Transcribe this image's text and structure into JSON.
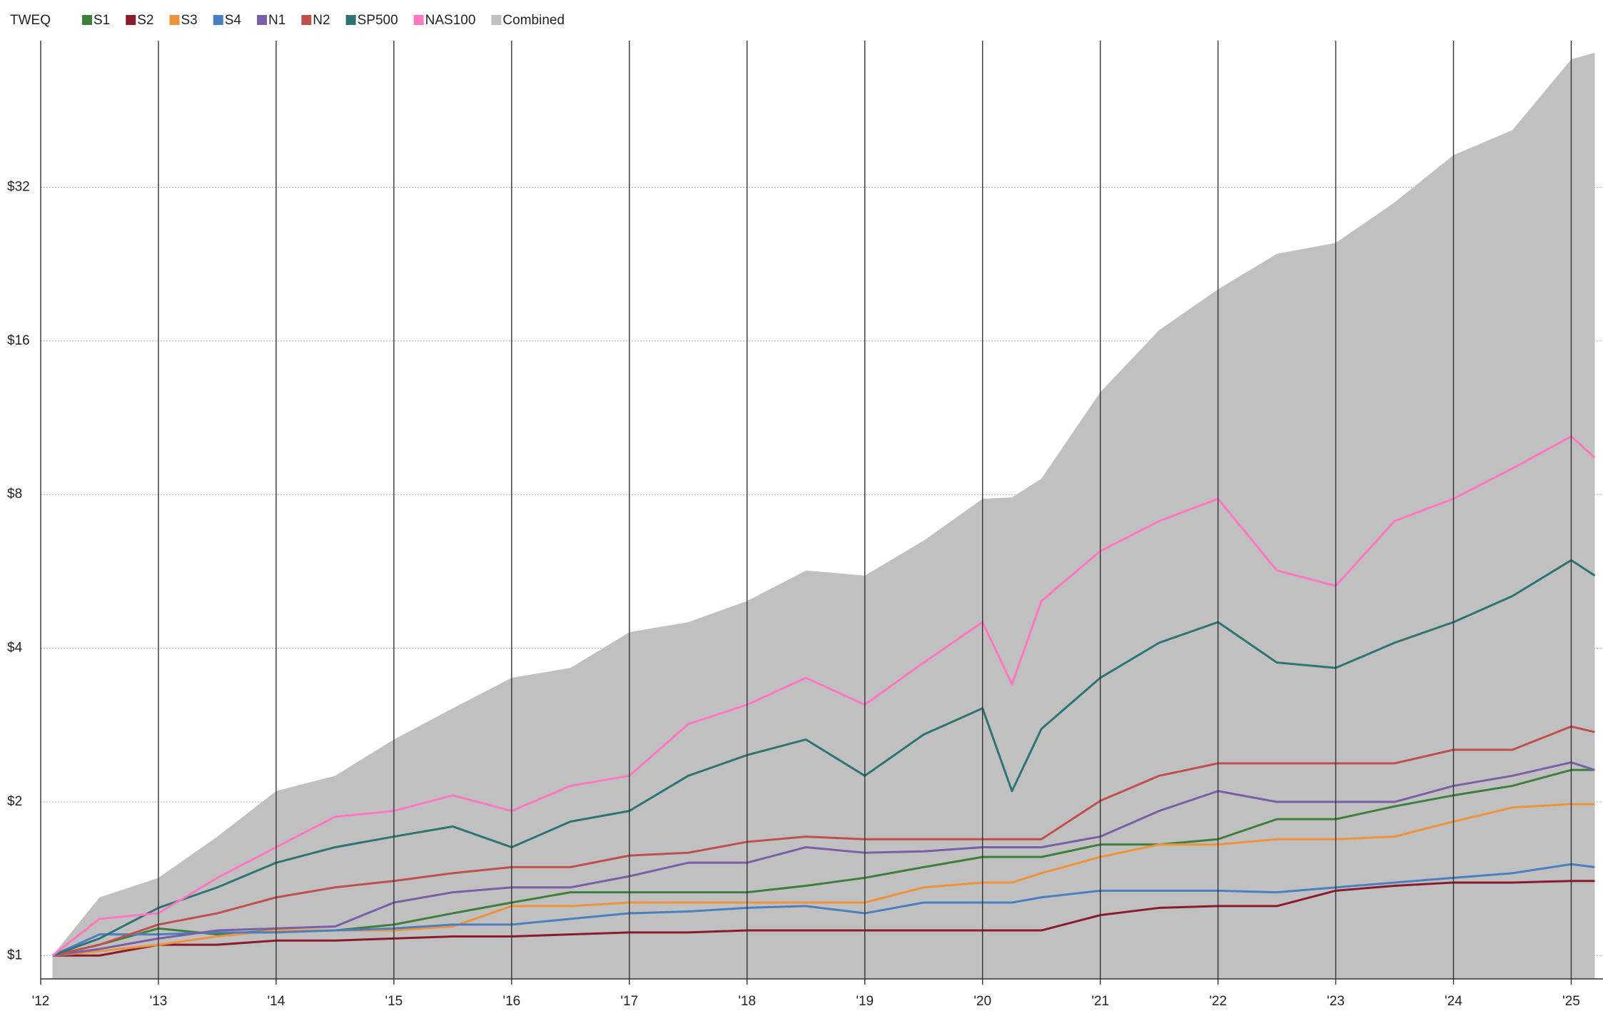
{
  "chart_data": {
    "type": "line",
    "title": "TWEQ",
    "log_scale": true,
    "grid": true,
    "legend": "top-left",
    "x": [
      2012.1,
      2012.5,
      2013,
      2013.5,
      2014,
      2014.5,
      2015,
      2015.5,
      2016,
      2016.5,
      2017,
      2017.5,
      2018,
      2018.5,
      2019,
      2019.5,
      2020,
      2020.25,
      2020.5,
      2021,
      2021.5,
      2022,
      2022.5,
      2023,
      2023.5,
      2024,
      2024.5,
      2025,
      2025.2
    ],
    "xlim": [
      2012,
      2025.27
    ],
    "xticks": [
      {
        "value": 2012,
        "label": "'12"
      },
      {
        "value": 2013,
        "label": "'13"
      },
      {
        "value": 2014,
        "label": "'14"
      },
      {
        "value": 2015,
        "label": "'15"
      },
      {
        "value": 2016,
        "label": "'16"
      },
      {
        "value": 2017,
        "label": "'17"
      },
      {
        "value": 2018,
        "label": "'18"
      },
      {
        "value": 2019,
        "label": "'19"
      },
      {
        "value": 2020,
        "label": "'20"
      },
      {
        "value": 2021,
        "label": "'21"
      },
      {
        "value": 2022,
        "label": "'22"
      },
      {
        "value": 2023,
        "label": "'23"
      },
      {
        "value": 2024,
        "label": "'24"
      },
      {
        "value": 2025,
        "label": "'25"
      }
    ],
    "ylim": [
      0.9,
      62
    ],
    "yticks": [
      {
        "value": 1,
        "label": "$1"
      },
      {
        "value": 2,
        "label": "$2"
      },
      {
        "value": 4,
        "label": "$4"
      },
      {
        "value": 8,
        "label": "$8"
      },
      {
        "value": 16,
        "label": "$16"
      },
      {
        "value": 32,
        "label": "$32"
      }
    ],
    "series": [
      {
        "name": "S1",
        "color": "#3d7f3d",
        "values": [
          1,
          1.05,
          1.13,
          1.1,
          1.12,
          1.12,
          1.15,
          1.21,
          1.27,
          1.33,
          1.33,
          1.33,
          1.33,
          1.37,
          1.42,
          1.49,
          1.56,
          1.56,
          1.56,
          1.65,
          1.65,
          1.69,
          1.85,
          1.85,
          1.96,
          2.06,
          2.15,
          2.31,
          2.31
        ]
      },
      {
        "name": "S2",
        "color": "#8b1a2a",
        "values": [
          1,
          1.0,
          1.05,
          1.05,
          1.07,
          1.07,
          1.08,
          1.09,
          1.09,
          1.1,
          1.11,
          1.11,
          1.12,
          1.12,
          1.12,
          1.12,
          1.12,
          1.12,
          1.12,
          1.2,
          1.24,
          1.25,
          1.25,
          1.34,
          1.37,
          1.39,
          1.39,
          1.4,
          1.4
        ]
      },
      {
        "name": "S3",
        "color": "#f0923a",
        "values": [
          1,
          1.02,
          1.05,
          1.09,
          1.12,
          1.12,
          1.12,
          1.14,
          1.25,
          1.25,
          1.27,
          1.27,
          1.27,
          1.27,
          1.27,
          1.36,
          1.39,
          1.39,
          1.45,
          1.56,
          1.65,
          1.65,
          1.69,
          1.69,
          1.71,
          1.83,
          1.95,
          1.98,
          1.98
        ]
      },
      {
        "name": "S4",
        "color": "#4a7fc1",
        "values": [
          1,
          1.1,
          1.1,
          1.11,
          1.11,
          1.12,
          1.13,
          1.15,
          1.15,
          1.18,
          1.21,
          1.22,
          1.24,
          1.25,
          1.21,
          1.27,
          1.27,
          1.27,
          1.3,
          1.34,
          1.34,
          1.34,
          1.33,
          1.36,
          1.39,
          1.42,
          1.45,
          1.51,
          1.49
        ]
      },
      {
        "name": "N1",
        "color": "#7b5ea8",
        "values": [
          1,
          1.03,
          1.08,
          1.12,
          1.13,
          1.14,
          1.27,
          1.33,
          1.36,
          1.36,
          1.43,
          1.52,
          1.52,
          1.63,
          1.59,
          1.6,
          1.63,
          1.63,
          1.63,
          1.71,
          1.92,
          2.1,
          2.0,
          2.0,
          2.0,
          2.15,
          2.25,
          2.39,
          2.31
        ]
      },
      {
        "name": "N2",
        "color": "#c0504d",
        "values": [
          1,
          1.05,
          1.15,
          1.21,
          1.3,
          1.36,
          1.4,
          1.45,
          1.49,
          1.49,
          1.57,
          1.59,
          1.67,
          1.71,
          1.69,
          1.69,
          1.69,
          1.69,
          1.69,
          2.01,
          2.25,
          2.38,
          2.38,
          2.38,
          2.38,
          2.53,
          2.53,
          2.81,
          2.74
        ]
      },
      {
        "name": "SP500",
        "color": "#2e7474",
        "values": [
          1,
          1.08,
          1.24,
          1.36,
          1.52,
          1.63,
          1.71,
          1.79,
          1.63,
          1.83,
          1.92,
          2.25,
          2.47,
          2.65,
          2.25,
          2.71,
          3.05,
          2.1,
          2.78,
          3.5,
          4.1,
          4.5,
          3.75,
          3.66,
          4.1,
          4.5,
          5.06,
          5.95,
          5.55
        ]
      },
      {
        "name": "NAS100",
        "color": "#ff77c0",
        "values": [
          1,
          1.18,
          1.21,
          1.42,
          1.63,
          1.87,
          1.92,
          2.06,
          1.92,
          2.15,
          2.25,
          2.84,
          3.1,
          3.5,
          3.1,
          3.75,
          4.5,
          3.4,
          4.95,
          6.2,
          7.1,
          7.85,
          5.68,
          5.3,
          7.1,
          7.85,
          9,
          10.4,
          9.45
        ]
      },
      {
        "name": "Combined",
        "color": "#c0c0c0",
        "type": "area",
        "values": [
          1,
          1.3,
          1.42,
          1.71,
          2.1,
          2.25,
          2.65,
          3.05,
          3.5,
          3.66,
          4.3,
          4.5,
          4.95,
          5.68,
          5.55,
          6.5,
          7.85,
          7.9,
          8.6,
          12.7,
          16.8,
          20.2,
          23.7,
          24.9,
          29.9,
          37,
          41.4,
          57,
          58.7
        ]
      }
    ]
  }
}
